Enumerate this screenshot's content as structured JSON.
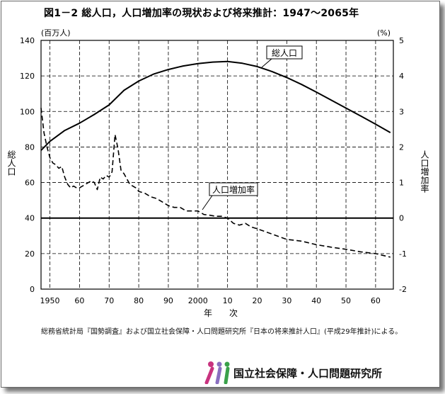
{
  "title": "図1－2 総人口，人口増加率の現状および将来推計：1947～2065年",
  "left_unit": "(百万人)",
  "right_unit": "(%)",
  "left_axis_label": "総人口",
  "right_axis_label": "人口増加率",
  "x_axis_label": "年　　次",
  "note": "総務省統計局『国勢調査』および国立社会保障・人口問題研究所『日本の将来推計人口』(平成29年推計)による。",
  "logo_text": "国立社会保障・人口問題研究所",
  "chart_data": {
    "type": "line",
    "title": "図1－2 総人口，人口増加率の現状および将来推計：1947～2065年",
    "xlim": [
      1947,
      2066
    ],
    "x_ticks": [
      1950,
      1960,
      1970,
      1980,
      1990,
      2000,
      2010,
      2020,
      2030,
      2040,
      2050,
      2060
    ],
    "x_tick_labels": [
      "1950",
      "60",
      "70",
      "80",
      "90",
      "2000",
      "10",
      "20",
      "30",
      "40",
      "50",
      "60"
    ],
    "ylim_left": [
      0,
      140
    ],
    "y_ticks_left": [
      0,
      20,
      40,
      60,
      80,
      100,
      120,
      140
    ],
    "ylim_right": [
      -2,
      5
    ],
    "y_ticks_right": [
      -2,
      -1,
      0,
      1,
      2,
      3,
      4,
      5
    ],
    "ylabel_left": "総人口",
    "ylabel_right": "人口増加率",
    "xlabel": "年　　次",
    "grid": "vertical dashed lines at x ticks; horizontal dashed lines at left y ticks",
    "series": [
      {
        "name": "総人口",
        "axis": "left",
        "style": "solid",
        "color": "#000000",
        "x": [
          1947,
          1950,
          1955,
          1960,
          1965,
          1970,
          1975,
          1980,
          1985,
          1990,
          1995,
          2000,
          2005,
          2010,
          2015,
          2020,
          2025,
          2030,
          2035,
          2040,
          2045,
          2050,
          2055,
          2060,
          2065
        ],
        "y": [
          78.1,
          83.2,
          89.3,
          93.4,
          98.3,
          103.7,
          111.9,
          117.1,
          121.0,
          123.6,
          125.6,
          126.9,
          127.8,
          128.1,
          127.1,
          125.3,
          122.5,
          119.1,
          115.2,
          110.9,
          106.4,
          101.9,
          97.4,
          92.8,
          88.1
        ]
      },
      {
        "name": "人口増加率",
        "axis": "right",
        "style": "dashed",
        "color": "#000000",
        "x": [
          1947,
          1948,
          1949,
          1950,
          1951,
          1952,
          1953,
          1954,
          1955,
          1956,
          1957,
          1958,
          1959,
          1960,
          1961,
          1962,
          1963,
          1964,
          1965,
          1966,
          1967,
          1968,
          1969,
          1970,
          1971,
          1972,
          1973,
          1974,
          1975,
          1976,
          1977,
          1978,
          1979,
          1980,
          1982,
          1984,
          1986,
          1988,
          1990,
          1992,
          1994,
          1996,
          1998,
          2000,
          2002,
          2004,
          2006,
          2008,
          2010,
          2012,
          2014,
          2016,
          2018,
          2020,
          2025,
          2030,
          2035,
          2040,
          2045,
          2050,
          2055,
          2060,
          2065
        ],
        "y": [
          3.1,
          2.4,
          2.0,
          1.7,
          1.55,
          1.5,
          1.4,
          1.45,
          1.15,
          0.95,
          0.85,
          0.9,
          0.85,
          0.85,
          0.9,
          0.95,
          1.0,
          1.05,
          1.0,
          0.8,
          1.15,
          1.1,
          1.2,
          1.15,
          1.3,
          2.35,
          1.95,
          1.35,
          1.25,
          1.1,
          0.95,
          0.9,
          0.85,
          0.75,
          0.7,
          0.6,
          0.55,
          0.45,
          0.35,
          0.3,
          0.3,
          0.2,
          0.2,
          0.2,
          0.1,
          0.08,
          0.05,
          0.05,
          0.0,
          -0.15,
          -0.2,
          -0.15,
          -0.25,
          -0.3,
          -0.45,
          -0.6,
          -0.65,
          -0.75,
          -0.82,
          -0.88,
          -0.95,
          -1.0,
          -1.1
        ]
      },
      {
        "name": "zero-line",
        "axis": "right",
        "style": "solid",
        "color": "#000000",
        "x": [
          1947,
          2066
        ],
        "y": [
          0,
          0
        ]
      }
    ],
    "annotations": [
      {
        "text": "総人口",
        "series": "総人口"
      },
      {
        "text": "人口増加率",
        "series": "人口増加率"
      }
    ]
  }
}
